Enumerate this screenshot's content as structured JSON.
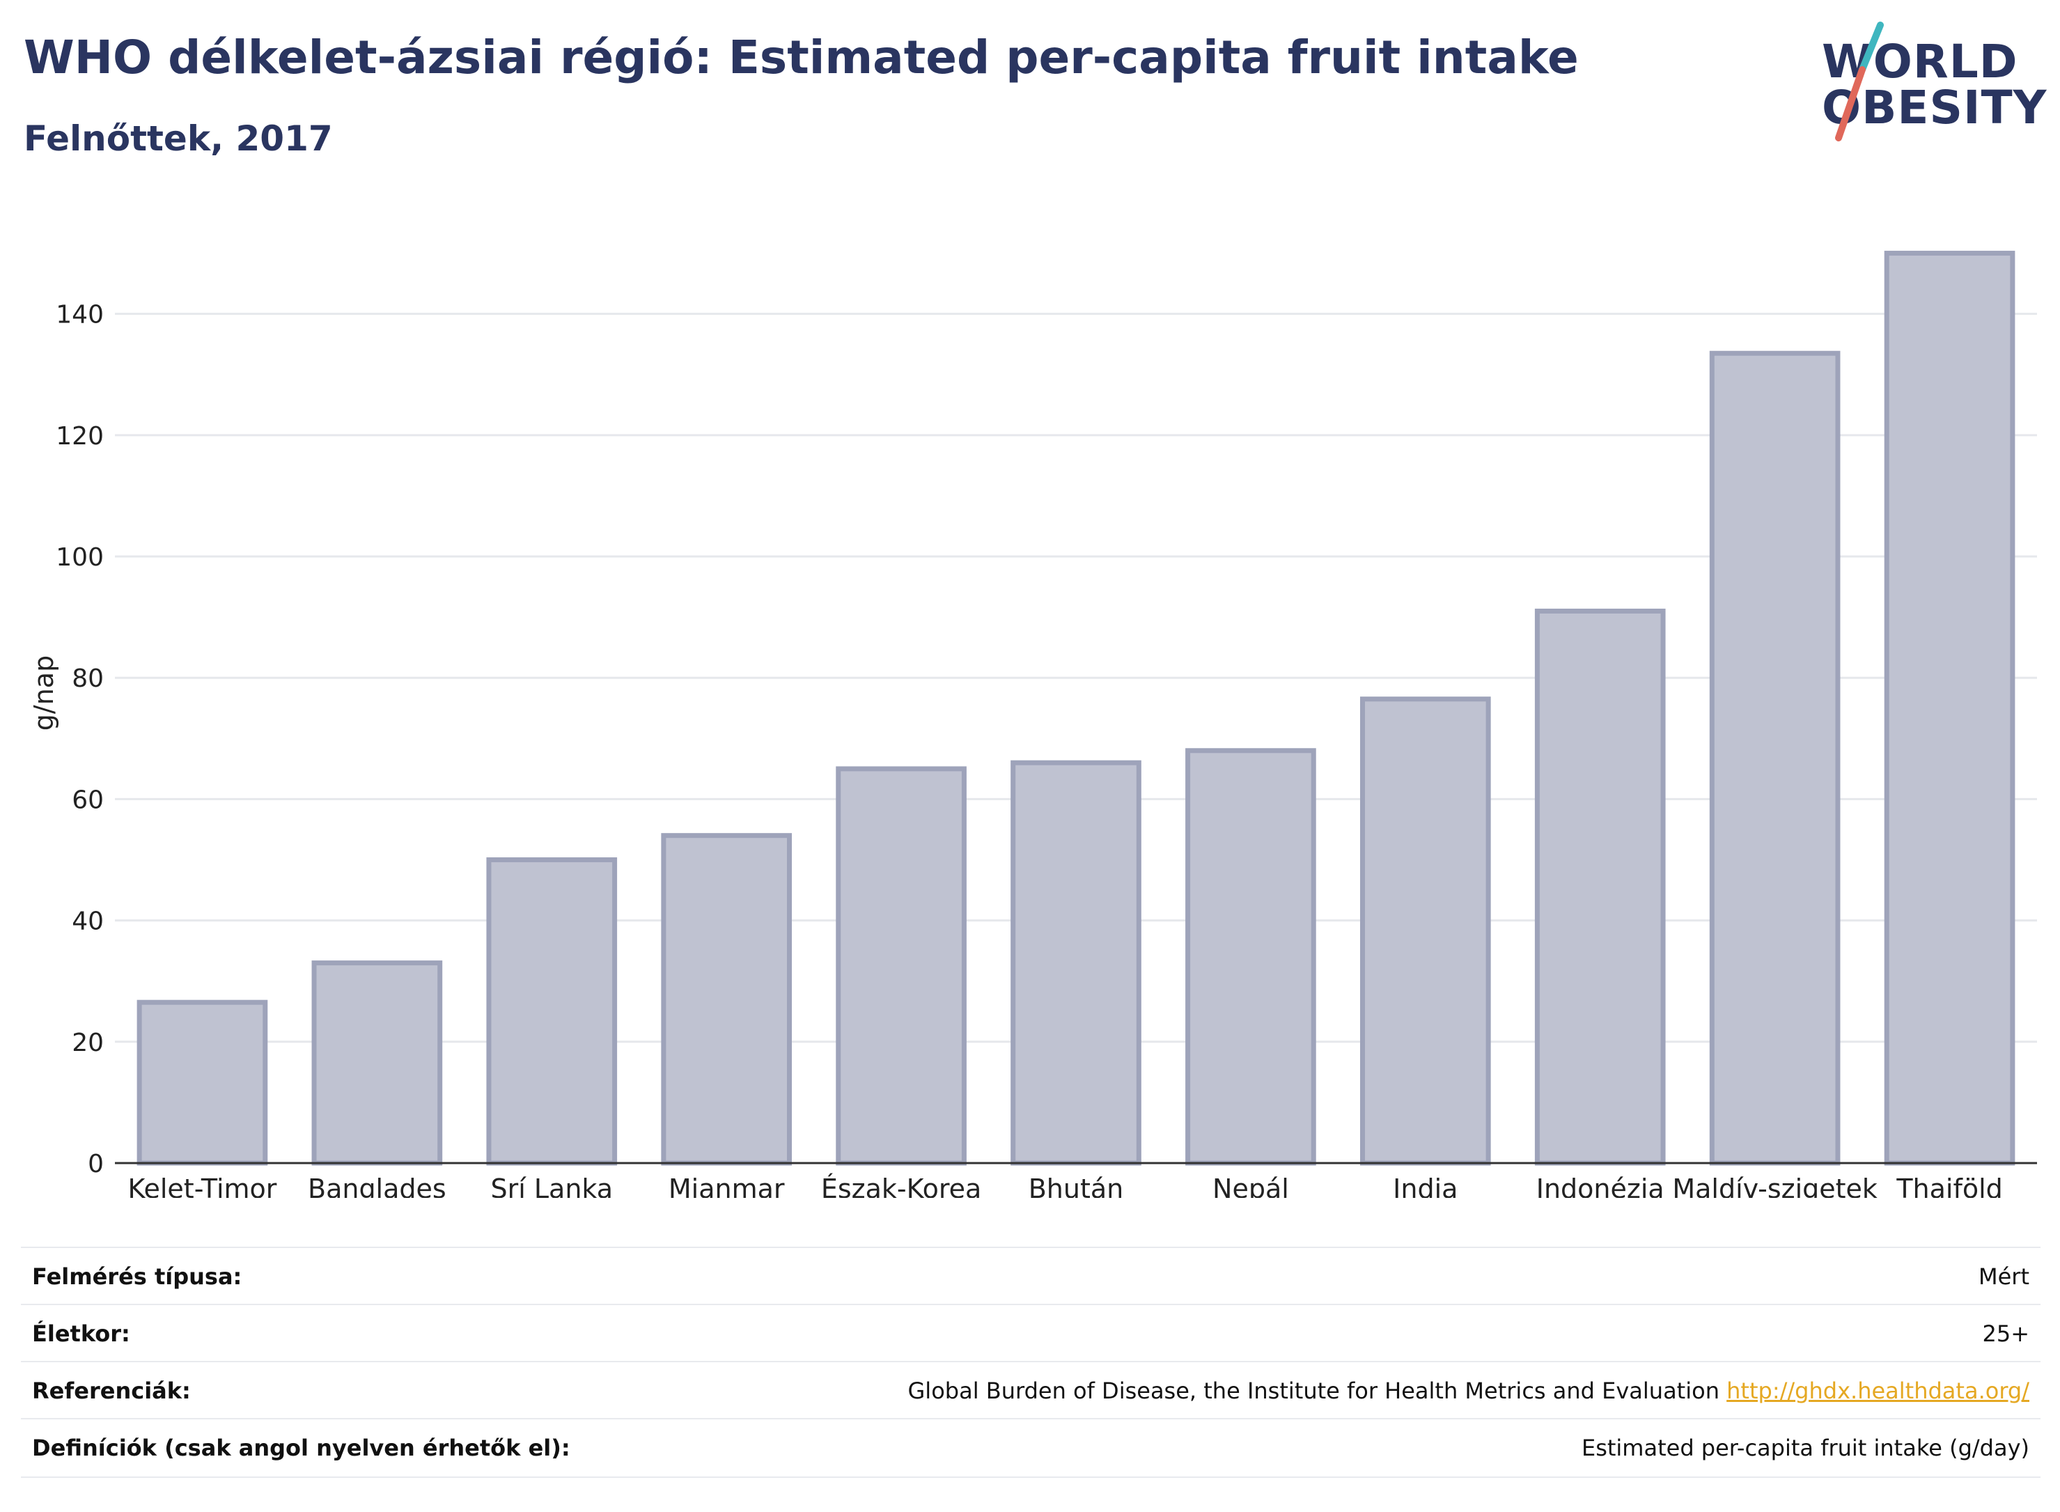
{
  "header": {
    "title": "WHO délkelet-ázsiai régió: Estimated per-capita fruit intake",
    "subtitle": "Felnőttek, 2017"
  },
  "logo": {
    "line1": "WORLD",
    "line2": "OBESITY",
    "accent_colors": [
      "#3fb6bf",
      "#e0685a"
    ]
  },
  "chart_data": {
    "type": "bar",
    "categories": [
      "Kelet-Timor",
      "Banglades",
      "Srí Lanka",
      "Mianmar",
      "Észak-Korea",
      "Bhután",
      "Nepál",
      "India",
      "Indonézia",
      "Maldív-szigetek",
      "Thaiföld"
    ],
    "values": [
      26.5,
      33,
      50,
      54,
      65,
      66,
      68,
      76.5,
      91,
      133.5,
      150
    ],
    "ylabel": "g/nap",
    "ylim": [
      0,
      155
    ],
    "yticks": [
      0,
      20,
      40,
      60,
      80,
      100,
      120,
      140
    ],
    "grid": true,
    "bar_color": "#bfc2d1",
    "bar_edge_color": "#9ea3ba"
  },
  "info": {
    "rows": [
      {
        "label": "Felmérés típusa:",
        "value": "Mért"
      },
      {
        "label": "Életkor:",
        "value": "25+"
      },
      {
        "label": "Referenciák:",
        "value": "Global Burden of Disease, the Institute for Health Metrics and Evaluation",
        "link": "http://ghdx.healthdata.org/"
      },
      {
        "label": "Definíciók (csak angol nyelven érhetők el):",
        "value": "Estimated per-capita fruit intake (g/day)"
      }
    ]
  }
}
